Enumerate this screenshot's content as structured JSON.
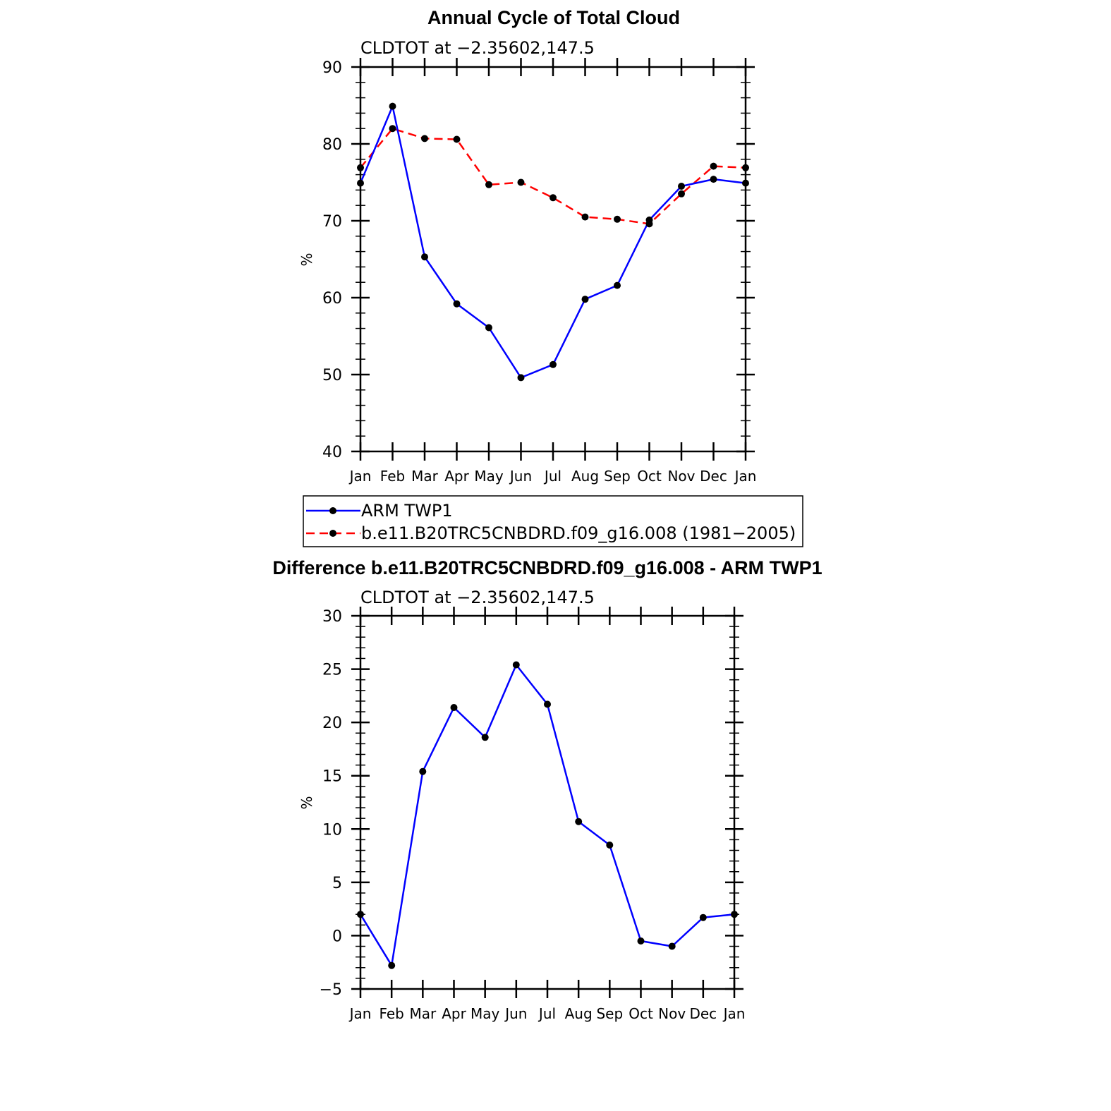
{
  "chart_data": [
    {
      "type": "line",
      "title": "Annual Cycle of Total Cloud",
      "subtitle": "CLDTOT at −2.35602,147.5",
      "xlabel": "",
      "ylabel": "%",
      "ylim": [
        40,
        90
      ],
      "yticks": [
        "40",
        "50",
        "60",
        "70",
        "80",
        "90"
      ],
      "categories": [
        "Jan",
        "Feb",
        "Mar",
        "Apr",
        "May",
        "Jun",
        "Jul",
        "Aug",
        "Sep",
        "Oct",
        "Nov",
        "Dec",
        "Jan"
      ],
      "series": [
        {
          "name": "ARM TWP1",
          "color": "#0000ff",
          "dash": "solid",
          "values": [
            74.9,
            84.9,
            65.3,
            59.2,
            56.1,
            49.6,
            51.3,
            59.8,
            61.6,
            70.1,
            74.5,
            75.4,
            74.9
          ]
        },
        {
          "name": "b.e11.B20TRC5CNBDRD.f09_g16.008 (1981−2005)",
          "color": "#ff0000",
          "dash": "dashed",
          "values": [
            76.9,
            82.0,
            80.7,
            80.6,
            74.7,
            75.0,
            73.0,
            70.5,
            70.2,
            69.6,
            73.5,
            77.1,
            76.9
          ]
        }
      ],
      "legend": "below"
    },
    {
      "type": "line",
      "title": "Difference b.e11.B20TRC5CNBDRD.f09_g16.008 - ARM TWP1",
      "subtitle": "CLDTOT at −2.35602,147.5",
      "xlabel": "",
      "ylabel": "%",
      "ylim": [
        -5,
        30
      ],
      "yticks": [
        "−5",
        "0",
        "5",
        "10",
        "15",
        "20",
        "25",
        "30"
      ],
      "categories": [
        "Jan",
        "Feb",
        "Mar",
        "Apr",
        "May",
        "Jun",
        "Jul",
        "Aug",
        "Sep",
        "Oct",
        "Nov",
        "Dec",
        "Jan"
      ],
      "series": [
        {
          "name": "Difference",
          "color": "#0000ff",
          "dash": "solid",
          "values": [
            2.0,
            -2.8,
            15.4,
            21.4,
            18.6,
            25.4,
            21.7,
            10.7,
            8.5,
            -0.5,
            -1.0,
            1.7,
            2.0
          ]
        }
      ]
    }
  ]
}
